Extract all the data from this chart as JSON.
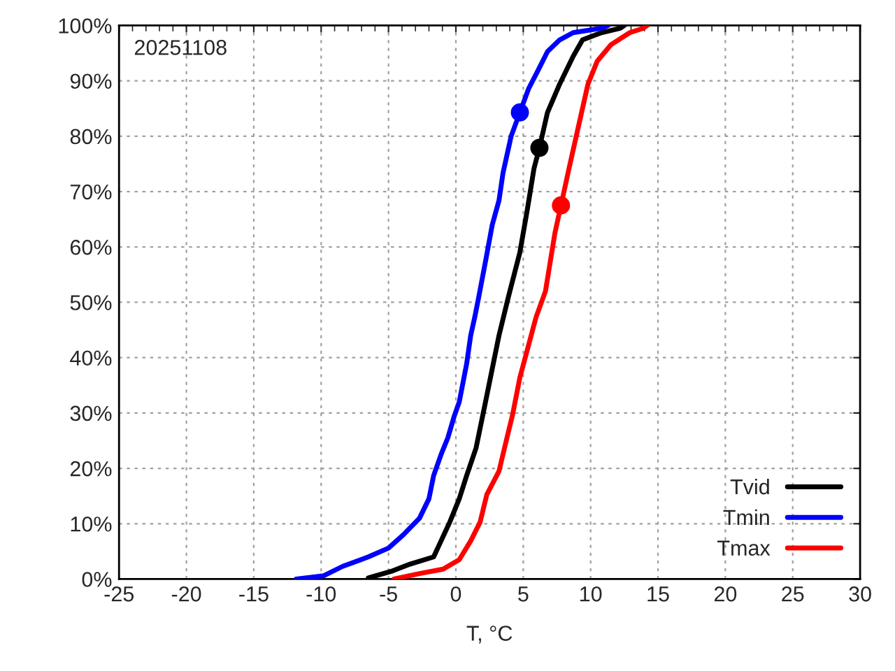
{
  "chart_data": {
    "type": "line",
    "xlabel": "T, °C",
    "annotations": [
      "20251108"
    ],
    "xlim": [
      -25,
      30
    ],
    "xticks": [
      -25,
      -20,
      -15,
      -10,
      -5,
      0,
      5,
      10,
      15,
      20,
      25,
      30
    ],
    "ylim": [
      0,
      100
    ],
    "yticks": [
      {
        "value": 0,
        "label": "0%"
      },
      {
        "value": 10,
        "label": "10%"
      },
      {
        "value": 20,
        "label": "20%"
      },
      {
        "value": 30,
        "label": "30%"
      },
      {
        "value": 40,
        "label": "40%"
      },
      {
        "value": 50,
        "label": "50%"
      },
      {
        "value": 60,
        "label": "60%"
      },
      {
        "value": 70,
        "label": "70%"
      },
      {
        "value": 80,
        "label": "80%"
      },
      {
        "value": 90,
        "label": "90%"
      },
      {
        "value": 100,
        "label": "100%"
      }
    ],
    "grid": true,
    "legend": "bottom right",
    "marker": "none",
    "line_style": "solid",
    "series": [
      {
        "name": "Tvid",
        "color": "#000000",
        "x": [
          -6.5,
          -4.8,
          -3.4,
          -1.65,
          -1.1,
          -0.45,
          0.25,
          0.8,
          1.5,
          2.2,
          2.7,
          3.2,
          3.9,
          4.75,
          5.3,
          5.8,
          6.2,
          6.8,
          7.7,
          8.7,
          9.4,
          10.8,
          12.2,
          12.5
        ],
        "values": [
          0.2,
          1.4,
          2.7,
          4,
          6.9,
          10.3,
          14.5,
          18.7,
          23.7,
          32,
          38,
          44,
          51,
          59,
          66.7,
          74.2,
          77.9,
          84.3,
          89.4,
          94.4,
          97.4,
          98.7,
          99.5,
          100
        ]
      },
      {
        "name": "Tmin",
        "color": "#0000ff",
        "x": [
          -11.85,
          -9.8,
          -8.4,
          -6.5,
          -5,
          -3.9,
          -2.7,
          -2,
          -1.65,
          -1.1,
          -0.6,
          -0.1,
          0.25,
          0.8,
          1.1,
          1.4,
          1.7,
          2.2,
          2.7,
          3.2,
          3.5,
          4.1,
          4.75,
          5.4,
          6.1,
          6.8,
          7.7,
          8.7,
          10.8,
          11.3
        ],
        "values": [
          0,
          0.6,
          2.3,
          4,
          5.6,
          8,
          11,
          14.5,
          18.7,
          22.5,
          25.5,
          29.6,
          32,
          38.9,
          44,
          47.3,
          51,
          57.4,
          64,
          68.4,
          73.4,
          80,
          84.3,
          88.6,
          91.9,
          95.3,
          97.4,
          98.7,
          99.5,
          100
        ]
      },
      {
        "name": "Tmax",
        "color": "#ff0000",
        "x": [
          -4.6,
          -2.7,
          -0.95,
          0.25,
          1.1,
          1.8,
          2.3,
          3.2,
          3.7,
          4.2,
          4.75,
          5.3,
          5.95,
          6.65,
          7.35,
          7.8,
          8.4,
          9.1,
          9.8,
          10.5,
          11.5,
          12.9,
          13.9,
          14.2
        ],
        "values": [
          0,
          1,
          1.8,
          3.5,
          6.9,
          10.3,
          15.3,
          19.5,
          24.6,
          29.6,
          36.4,
          41.4,
          47.3,
          52,
          62.5,
          67.5,
          74.2,
          81.8,
          89.4,
          93.6,
          96.5,
          98.7,
          99.5,
          100
        ]
      },
      {
        "type": "scatter",
        "marker": "circle",
        "color": "#000000",
        "x": [
          6.2
        ],
        "values": [
          77.9
        ]
      },
      {
        "type": "scatter",
        "marker": "circle",
        "color": "#0000ff",
        "x": [
          4.75
        ],
        "values": [
          84.3
        ]
      },
      {
        "type": "scatter",
        "marker": "circle",
        "color": "#ff0000",
        "x": [
          7.8
        ],
        "values": [
          67.5
        ]
      }
    ]
  }
}
